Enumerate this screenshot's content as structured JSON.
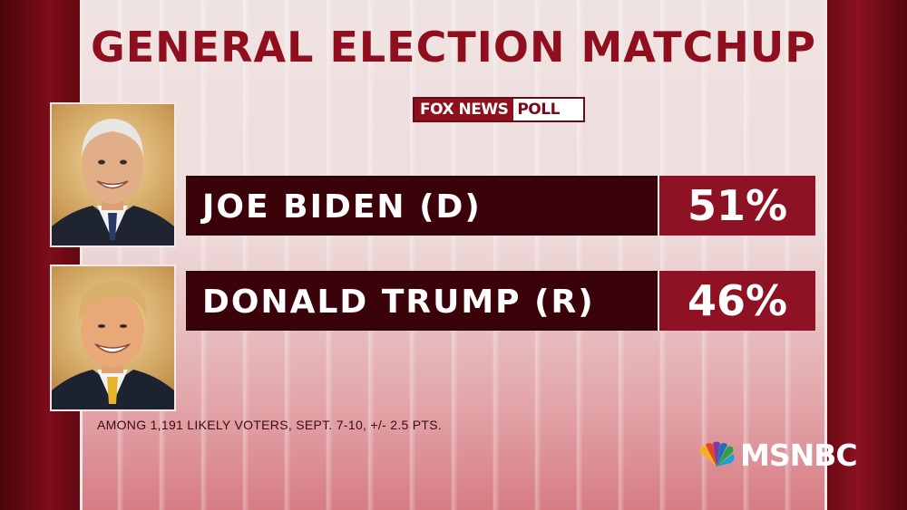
{
  "title": "GENERAL ELECTION MATCHUP",
  "source_logo": {
    "part1": "FOX NEWS",
    "part2": "POLL"
  },
  "candidates": [
    {
      "name": "JOE BIDEN (D)",
      "value": "51%"
    },
    {
      "name": "DONALD TRUMP (R)",
      "value": "46%"
    }
  ],
  "footnote": "AMONG 1,191 LIKELY VOTERS, SEPT. 7-10, +/- 2.5 PTS.",
  "network_logo": "MSNBC",
  "colors": {
    "bar_dark": "#3a0309",
    "bar_value": "#8e1124",
    "title": "#8f0f1f"
  }
}
